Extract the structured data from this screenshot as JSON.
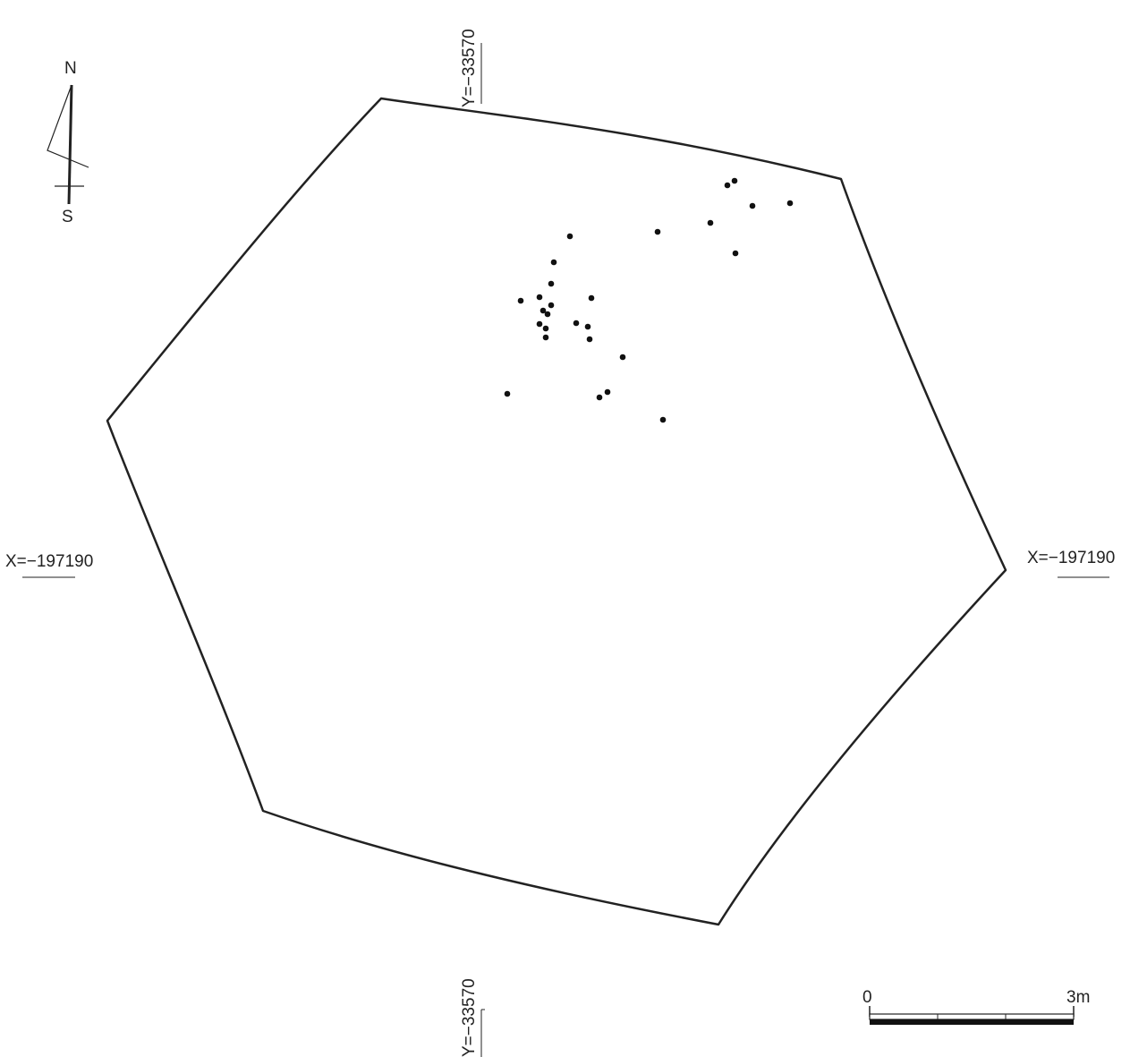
{
  "compass": {
    "north": "N",
    "south": "S"
  },
  "coords": {
    "top_y": "Y=−33570",
    "bottom_y": "Y=−33570",
    "left_x": "X=−197190",
    "right_x": "X=−197190"
  },
  "scale": {
    "start": "0",
    "end": "3m",
    "divisions": 3
  },
  "colors": {
    "ink": "#222222",
    "dots": "#111111",
    "background": "#ffffff"
  },
  "features": {
    "boundary": "hexagonal pit outline",
    "finds_count": 29
  }
}
